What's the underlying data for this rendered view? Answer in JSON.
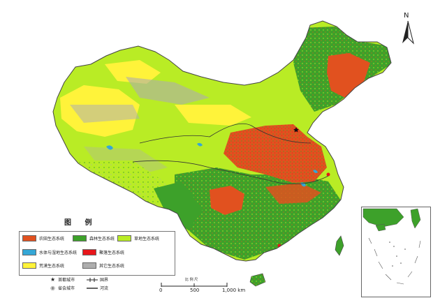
{
  "legend": {
    "title": "图 例",
    "items": [
      {
        "label": "农田生态系统",
        "color": "#e1511f"
      },
      {
        "label": "森林生态系统",
        "color": "#3da12a"
      },
      {
        "label": "草地生态系统",
        "color": "#b9ec25"
      },
      {
        "label": "水体与湿地生态系统",
        "color": "#35a7d6"
      },
      {
        "label": "聚落生态系统",
        "color": "#e8161b"
      },
      {
        "label": "荒漠生态系统",
        "color": "#fff33a"
      },
      {
        "label": "其它生态系统",
        "color": "#aeaeae"
      }
    ]
  },
  "symbols": {
    "capital": "首都城市",
    "provincial": "省会城市",
    "border": "国界",
    "river": "河流"
  },
  "scale": {
    "title": "比 例 尺",
    "ticks": [
      "0",
      "500",
      "1,000 km"
    ]
  },
  "north_label": "N",
  "icons": {
    "capital": "star-icon",
    "provincial": "circle-icon",
    "north": "north-arrow-icon"
  },
  "colors": {
    "farmland": "#e1511f",
    "forest": "#3da12a",
    "grassland": "#b9ec25",
    "water": "#35a7d6",
    "settlement": "#e8161b",
    "desert": "#fff33a",
    "other": "#aeaeae"
  }
}
